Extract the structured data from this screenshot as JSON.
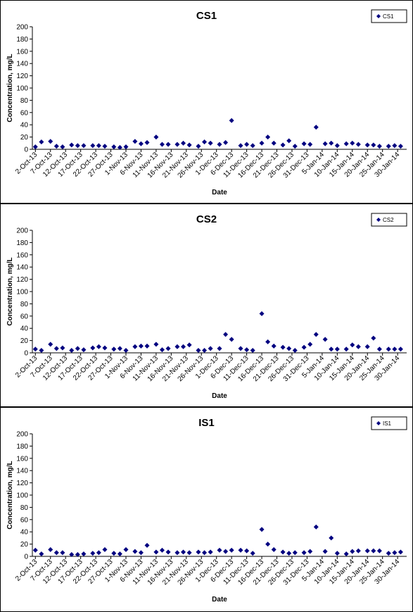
{
  "chart_data": [
    {
      "type": "scatter",
      "title": "CS1",
      "x_label": "Date",
      "y_label": "Concentration, mg/L",
      "legend": "upper right",
      "x": [
        "2013-10-02",
        "2013-10-04",
        "2013-10-07",
        "2013-10-09",
        "2013-10-11",
        "2013-10-14",
        "2013-10-16",
        "2013-10-18",
        "2013-10-21",
        "2013-10-23",
        "2013-10-25",
        "2013-10-28",
        "2013-10-30",
        "2013-11-01",
        "2013-11-04",
        "2013-11-06",
        "2013-11-08",
        "2013-11-11",
        "2013-11-13",
        "2013-11-15",
        "2013-11-18",
        "2013-11-20",
        "2013-11-22",
        "2013-11-25",
        "2013-11-27",
        "2013-11-29",
        "2013-12-02",
        "2013-12-04",
        "2013-12-06",
        "2013-12-09",
        "2013-12-11",
        "2013-12-13",
        "2013-12-16",
        "2013-12-18",
        "2013-12-20",
        "2013-12-23",
        "2013-12-25",
        "2013-12-27",
        "2013-12-30",
        "2014-01-01",
        "2014-01-03",
        "2014-01-06",
        "2014-01-08",
        "2014-01-10",
        "2014-01-13",
        "2014-01-15",
        "2014-01-17",
        "2014-01-20",
        "2014-01-22",
        "2014-01-24",
        "2014-01-27",
        "2014-01-29",
        "2014-01-31"
      ],
      "series": [
        {
          "name": "CS1",
          "color": "#000080",
          "values": [
            4,
            12,
            13,
            5,
            4,
            7,
            6,
            6,
            6,
            6,
            5,
            4,
            3,
            4,
            13,
            9,
            11,
            20,
            8,
            8,
            8,
            10,
            7,
            5,
            12,
            10,
            8,
            11,
            47,
            6,
            8,
            6,
            10,
            20,
            10,
            7,
            14,
            5,
            9,
            8,
            36,
            9,
            10,
            6,
            9,
            10,
            8,
            7,
            7,
            5,
            5,
            6,
            5
          ]
        }
      ],
      "xlim": [
        "2013-10-01",
        "2014-02-02"
      ],
      "xticks": [
        {
          "value": "2013-10-02",
          "label": "2-Oct-13"
        },
        {
          "value": "2013-10-07",
          "label": "7-Oct-13"
        },
        {
          "value": "2013-10-12",
          "label": "12-Oct-13"
        },
        {
          "value": "2013-10-17",
          "label": "17-Oct-13"
        },
        {
          "value": "2013-10-22",
          "label": "22-Oct-13"
        },
        {
          "value": "2013-10-27",
          "label": "27-Oct-13"
        },
        {
          "value": "2013-11-01",
          "label": "1-Nov-13"
        },
        {
          "value": "2013-11-06",
          "label": "6-Nov-13"
        },
        {
          "value": "2013-11-11",
          "label": "11-Nov-13"
        },
        {
          "value": "2013-11-16",
          "label": "16-Nov-13"
        },
        {
          "value": "2013-11-21",
          "label": "21-Nov-13"
        },
        {
          "value": "2013-11-26",
          "label": "26-Nov-13"
        },
        {
          "value": "2013-12-01",
          "label": "1-Dec-13"
        },
        {
          "value": "2013-12-06",
          "label": "6-Dec-13"
        },
        {
          "value": "2013-12-11",
          "label": "11-Dec-13"
        },
        {
          "value": "2013-12-16",
          "label": "16-Dec-13"
        },
        {
          "value": "2013-12-21",
          "label": "21-Dec-13"
        },
        {
          "value": "2013-12-26",
          "label": "26-Dec-13"
        },
        {
          "value": "2013-12-31",
          "label": "31-Dec-13"
        },
        {
          "value": "2014-01-05",
          "label": "5-Jan-14"
        },
        {
          "value": "2014-01-10",
          "label": "10-Jan-14"
        },
        {
          "value": "2014-01-15",
          "label": "15-Jan-14"
        },
        {
          "value": "2014-01-20",
          "label": "20-Jan-14"
        },
        {
          "value": "2014-01-25",
          "label": "25-Jan-14"
        },
        {
          "value": "2014-01-30",
          "label": "30-Jan-14"
        }
      ],
      "ylim": [
        0,
        200
      ],
      "yticks": [
        0,
        20,
        40,
        60,
        80,
        100,
        120,
        140,
        160,
        180,
        200
      ]
    },
    {
      "type": "scatter",
      "title": "CS2",
      "x_label": "Date",
      "y_label": "Concentration, mg/L",
      "legend": "upper right",
      "x": [
        "2013-10-02",
        "2013-10-04",
        "2013-10-07",
        "2013-10-09",
        "2013-10-11",
        "2013-10-14",
        "2013-10-16",
        "2013-10-18",
        "2013-10-21",
        "2013-10-23",
        "2013-10-25",
        "2013-10-28",
        "2013-10-30",
        "2013-11-01",
        "2013-11-04",
        "2013-11-06",
        "2013-11-08",
        "2013-11-11",
        "2013-11-13",
        "2013-11-15",
        "2013-11-18",
        "2013-11-20",
        "2013-11-22",
        "2013-11-25",
        "2013-11-27",
        "2013-11-29",
        "2013-12-02",
        "2013-12-04",
        "2013-12-06",
        "2013-12-09",
        "2013-12-11",
        "2013-12-13",
        "2013-12-16",
        "2013-12-18",
        "2013-12-20",
        "2013-12-23",
        "2013-12-25",
        "2013-12-27",
        "2013-12-30",
        "2014-01-01",
        "2014-01-03",
        "2014-01-06",
        "2014-01-08",
        "2014-01-10",
        "2014-01-13",
        "2014-01-15",
        "2014-01-17",
        "2014-01-20",
        "2014-01-22",
        "2014-01-24",
        "2014-01-27",
        "2014-01-29",
        "2014-01-31"
      ],
      "series": [
        {
          "name": "CS2",
          "color": "#000080",
          "values": [
            6,
            4,
            14,
            7,
            8,
            4,
            7,
            5,
            8,
            10,
            8,
            6,
            7,
            4,
            10,
            11,
            11,
            14,
            5,
            7,
            10,
            10,
            13,
            4,
            4,
            7,
            7,
            30,
            22,
            7,
            5,
            4,
            64,
            18,
            11,
            9,
            7,
            4,
            9,
            14,
            30,
            22,
            6,
            6,
            6,
            13,
            10,
            10,
            24,
            6,
            6,
            6,
            6
          ]
        }
      ],
      "xlim": [
        "2013-10-01",
        "2014-02-02"
      ],
      "xticks": [
        {
          "value": "2013-10-02",
          "label": "2-Oct-13"
        },
        {
          "value": "2013-10-07",
          "label": "7-Oct-13"
        },
        {
          "value": "2013-10-12",
          "label": "12-Oct-13"
        },
        {
          "value": "2013-10-17",
          "label": "17-Oct-13"
        },
        {
          "value": "2013-10-22",
          "label": "22-Oct-13"
        },
        {
          "value": "2013-10-27",
          "label": "27-Oct-13"
        },
        {
          "value": "2013-11-01",
          "label": "1-Nov-13"
        },
        {
          "value": "2013-11-06",
          "label": "6-Nov-13"
        },
        {
          "value": "2013-11-11",
          "label": "11-Nov-13"
        },
        {
          "value": "2013-11-16",
          "label": "16-Nov-13"
        },
        {
          "value": "2013-11-21",
          "label": "21-Nov-13"
        },
        {
          "value": "2013-11-26",
          "label": "26-Nov-13"
        },
        {
          "value": "2013-12-01",
          "label": "1-Dec-13"
        },
        {
          "value": "2013-12-06",
          "label": "6-Dec-13"
        },
        {
          "value": "2013-12-11",
          "label": "11-Dec-13"
        },
        {
          "value": "2013-12-16",
          "label": "16-Dec-13"
        },
        {
          "value": "2013-12-21",
          "label": "21-Dec-13"
        },
        {
          "value": "2013-12-26",
          "label": "26-Dec-13"
        },
        {
          "value": "2013-12-31",
          "label": "31-Dec-13"
        },
        {
          "value": "2014-01-05",
          "label": "5-Jan-14"
        },
        {
          "value": "2014-01-10",
          "label": "10-Jan-14"
        },
        {
          "value": "2014-01-15",
          "label": "15-Jan-14"
        },
        {
          "value": "2014-01-20",
          "label": "20-Jan-14"
        },
        {
          "value": "2014-01-25",
          "label": "25-Jan-14"
        },
        {
          "value": "2014-01-30",
          "label": "30-Jan-14"
        }
      ],
      "ylim": [
        0,
        200
      ],
      "yticks": [
        0,
        20,
        40,
        60,
        80,
        100,
        120,
        140,
        160,
        180,
        200
      ]
    },
    {
      "type": "scatter",
      "title": "IS1",
      "x_label": "Date",
      "y_label": "Concentration, mg/L",
      "legend": "upper right",
      "x": [
        "2013-10-02",
        "2013-10-04",
        "2013-10-07",
        "2013-10-09",
        "2013-10-11",
        "2013-10-14",
        "2013-10-16",
        "2013-10-18",
        "2013-10-21",
        "2013-10-23",
        "2013-10-25",
        "2013-10-28",
        "2013-10-30",
        "2013-11-01",
        "2013-11-04",
        "2013-11-06",
        "2013-11-08",
        "2013-11-11",
        "2013-11-13",
        "2013-11-15",
        "2013-11-18",
        "2013-11-20",
        "2013-11-22",
        "2013-11-25",
        "2013-11-27",
        "2013-11-29",
        "2013-12-02",
        "2013-12-04",
        "2013-12-06",
        "2013-12-09",
        "2013-12-11",
        "2013-12-13",
        "2013-12-16",
        "2013-12-18",
        "2013-12-20",
        "2013-12-23",
        "2013-12-25",
        "2013-12-27",
        "2013-12-30",
        "2014-01-01",
        "2014-01-03",
        "2014-01-06",
        "2014-01-08",
        "2014-01-10",
        "2014-01-13",
        "2014-01-15",
        "2014-01-17",
        "2014-01-20",
        "2014-01-22",
        "2014-01-24",
        "2014-01-27",
        "2014-01-29",
        "2014-01-31"
      ],
      "series": [
        {
          "name": "IS1",
          "color": "#000080",
          "values": [
            10,
            4,
            11,
            6,
            6,
            3,
            3,
            4,
            5,
            6,
            11,
            5,
            4,
            11,
            8,
            6,
            18,
            7,
            10,
            7,
            6,
            7,
            6,
            7,
            6,
            7,
            10,
            8,
            10,
            10,
            9,
            5,
            44,
            20,
            11,
            7,
            5,
            6,
            6,
            8,
            48,
            8,
            30,
            5,
            4,
            8,
            9,
            9,
            9,
            9,
            5,
            6,
            7
          ]
        }
      ],
      "xlim": [
        "2013-10-01",
        "2014-02-02"
      ],
      "xticks": [
        {
          "value": "2013-10-02",
          "label": "2-Oct-13"
        },
        {
          "value": "2013-10-07",
          "label": "7-Oct-13"
        },
        {
          "value": "2013-10-12",
          "label": "12-Oct-13"
        },
        {
          "value": "2013-10-17",
          "label": "17-Oct-13"
        },
        {
          "value": "2013-10-22",
          "label": "22-Oct-13"
        },
        {
          "value": "2013-10-27",
          "label": "27-Oct-13"
        },
        {
          "value": "2013-11-01",
          "label": "1-Nov-13"
        },
        {
          "value": "2013-11-06",
          "label": "6-Nov-13"
        },
        {
          "value": "2013-11-11",
          "label": "11-Nov-13"
        },
        {
          "value": "2013-11-16",
          "label": "16-Nov-13"
        },
        {
          "value": "2013-11-21",
          "label": "21-Nov-13"
        },
        {
          "value": "2013-11-26",
          "label": "26-Nov-13"
        },
        {
          "value": "2013-12-01",
          "label": "1-Dec-13"
        },
        {
          "value": "2013-12-06",
          "label": "6-Dec-13"
        },
        {
          "value": "2013-12-11",
          "label": "11-Dec-13"
        },
        {
          "value": "2013-12-16",
          "label": "16-Dec-13"
        },
        {
          "value": "2013-12-21",
          "label": "21-Dec-13"
        },
        {
          "value": "2013-12-26",
          "label": "26-Dec-13"
        },
        {
          "value": "2013-12-31",
          "label": "31-Dec-13"
        },
        {
          "value": "2014-01-05",
          "label": "5-Jan-14"
        },
        {
          "value": "2014-01-10",
          "label": "10-Jan-14"
        },
        {
          "value": "2014-01-15",
          "label": "15-Jan-14"
        },
        {
          "value": "2014-01-20",
          "label": "20-Jan-14"
        },
        {
          "value": "2014-01-25",
          "label": "25-Jan-14"
        },
        {
          "value": "2014-01-30",
          "label": "30-Jan-14"
        }
      ],
      "ylim": [
        0,
        200
      ],
      "yticks": [
        0,
        20,
        40,
        60,
        80,
        100,
        120,
        140,
        160,
        180,
        200
      ]
    }
  ]
}
